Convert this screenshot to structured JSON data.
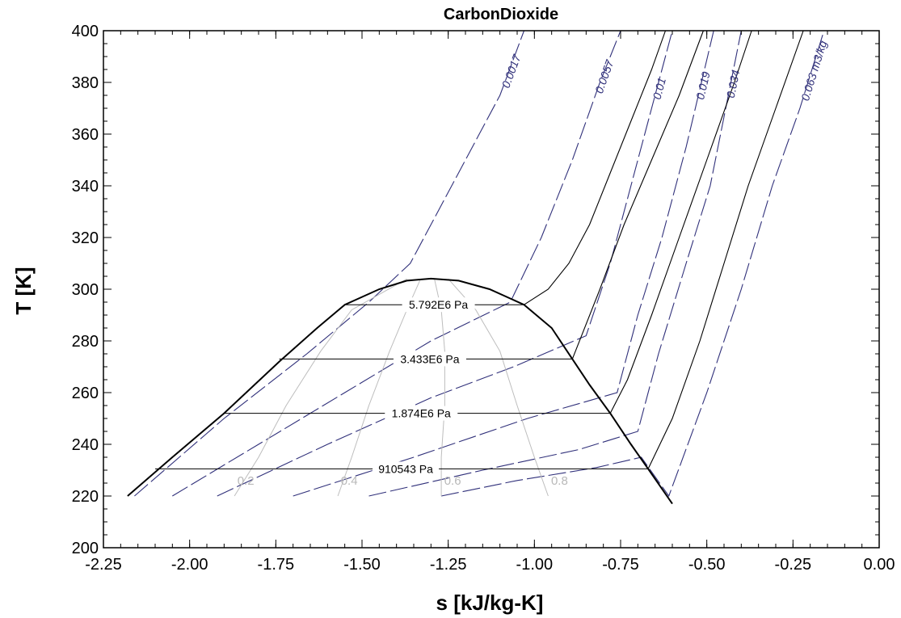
{
  "chart_data": {
    "type": "line",
    "title": "CarbonDioxide",
    "xlabel": "s [kJ/kg-K]",
    "ylabel": "T [K]",
    "xlim": [
      -2.25,
      0.0
    ],
    "ylim": [
      200,
      400
    ],
    "xticks": [
      "-2.25",
      "-2.00",
      "-1.75",
      "-1.50",
      "-1.25",
      "-1.00",
      "-0.75",
      "-0.50",
      "-0.25",
      "0.00"
    ],
    "yticks": [
      "200",
      "220",
      "240",
      "260",
      "280",
      "300",
      "320",
      "340",
      "360",
      "380",
      "400"
    ],
    "grid": false,
    "colors": {
      "saturation": "#000000",
      "isobar": "#000000",
      "isochor": "#30307a",
      "quality": "#bdbdbd"
    },
    "saturation_dome": [
      [
        -2.18,
        220
      ],
      [
        -2.05,
        235
      ],
      [
        -1.9,
        252
      ],
      [
        -1.74,
        272
      ],
      [
        -1.63,
        285
      ],
      [
        -1.55,
        294
      ],
      [
        -1.45,
        300
      ],
      [
        -1.37,
        303.3
      ],
      [
        -1.3,
        304.1
      ],
      [
        -1.22,
        303.3
      ],
      [
        -1.13,
        300
      ],
      [
        -1.03,
        294
      ],
      [
        -0.95,
        285
      ],
      [
        -0.89,
        273
      ],
      [
        -0.84,
        263
      ],
      [
        -0.78,
        252
      ],
      [
        -0.72,
        240
      ],
      [
        -0.67,
        230.5
      ],
      [
        -0.6,
        217
      ]
    ],
    "isobars": [
      {
        "label": "5.792E6 Pa",
        "T_sat": 294,
        "s_liq": -1.55,
        "s_vap": -1.03,
        "vapor": [
          [
            -1.03,
            294
          ],
          [
            -0.96,
            300
          ],
          [
            -0.9,
            310
          ],
          [
            -0.84,
            325
          ],
          [
            -0.78,
            345
          ],
          [
            -0.72,
            365
          ],
          [
            -0.66,
            385
          ],
          [
            -0.62,
            400
          ]
        ]
      },
      {
        "label": "3.433E6 Pa",
        "T_sat": 273,
        "s_liq": -1.74,
        "s_vap": -0.89,
        "vapor": [
          [
            -0.89,
            273
          ],
          [
            -0.81,
            300
          ],
          [
            -0.74,
            325
          ],
          [
            -0.66,
            350
          ],
          [
            -0.58,
            375
          ],
          [
            -0.51,
            400
          ]
        ]
      },
      {
        "label": "1.874E6 Pa",
        "T_sat": 252,
        "s_liq": -1.9,
        "s_vap": -0.78,
        "vapor": [
          [
            -0.78,
            252
          ],
          [
            -0.73,
            265
          ],
          [
            -0.66,
            290
          ],
          [
            -0.58,
            320
          ],
          [
            -0.5,
            350
          ],
          [
            -0.42,
            380
          ],
          [
            -0.37,
            400
          ]
        ]
      },
      {
        "label": "910543 Pa",
        "T_sat": 230.5,
        "s_liq": -2.1,
        "s_vap": -0.67,
        "vapor": [
          [
            -0.67,
            230.5
          ],
          [
            -0.6,
            250
          ],
          [
            -0.52,
            280
          ],
          [
            -0.45,
            310
          ],
          [
            -0.38,
            340
          ],
          [
            -0.3,
            370
          ],
          [
            -0.22,
            400
          ]
        ]
      }
    ],
    "isochors": [
      {
        "label": "0.0017",
        "points": [
          [
            -2.16,
            220
          ],
          [
            -1.9,
            250
          ],
          [
            -1.66,
            275
          ],
          [
            -1.48,
            295
          ],
          [
            -1.36,
            310
          ],
          [
            -1.22,
            345
          ],
          [
            -1.1,
            375
          ],
          [
            -1.03,
            400
          ]
        ]
      },
      {
        "label": "0.0057",
        "points": [
          [
            -2.05,
            220
          ],
          [
            -1.8,
            240
          ],
          [
            -1.55,
            260
          ],
          [
            -1.3,
            280
          ],
          [
            -1.07,
            295
          ],
          [
            -0.98,
            320
          ],
          [
            -0.89,
            350
          ],
          [
            -0.81,
            380
          ],
          [
            -0.75,
            400
          ]
        ]
      },
      {
        "label": "0.01",
        "points": [
          [
            -1.92,
            220
          ],
          [
            -1.6,
            240
          ],
          [
            -1.3,
            258
          ],
          [
            -1.06,
            270
          ],
          [
            -0.85,
            282
          ],
          [
            -0.78,
            310
          ],
          [
            -0.72,
            340
          ],
          [
            -0.66,
            370
          ],
          [
            -0.6,
            400
          ]
        ]
      },
      {
        "label": "0.019",
        "points": [
          [
            -1.7,
            220
          ],
          [
            -1.35,
            235
          ],
          [
            -1.02,
            250
          ],
          [
            -0.76,
            260
          ],
          [
            -0.7,
            290
          ],
          [
            -0.63,
            320
          ],
          [
            -0.56,
            355
          ],
          [
            -0.48,
            400
          ]
        ]
      },
      {
        "label": "0.034",
        "points": [
          [
            -1.48,
            220
          ],
          [
            -1.15,
            230
          ],
          [
            -0.87,
            238
          ],
          [
            -0.7,
            245
          ],
          [
            -0.64,
            275
          ],
          [
            -0.56,
            310
          ],
          [
            -0.49,
            340
          ],
          [
            -0.4,
            400
          ]
        ]
      },
      {
        "label": "0.063 m3/kg",
        "points": [
          [
            -1.27,
            220
          ],
          [
            -1.05,
            226
          ],
          [
            -0.82,
            231
          ],
          [
            -0.69,
            235
          ],
          [
            -0.61,
            220
          ],
          [
            -0.5,
            260
          ],
          [
            -0.4,
            300
          ],
          [
            -0.31,
            340
          ],
          [
            -0.23,
            370
          ],
          [
            -0.16,
            400
          ]
        ]
      }
    ],
    "quality_lines": [
      {
        "label": "0.2",
        "points": [
          [
            -1.87,
            220
          ],
          [
            -1.8,
            235
          ],
          [
            -1.72,
            255
          ],
          [
            -1.62,
            276
          ],
          [
            -1.53,
            292
          ],
          [
            -1.37,
            304
          ]
        ]
      },
      {
        "label": "0.4",
        "points": [
          [
            -1.57,
            220
          ],
          [
            -1.53,
            235
          ],
          [
            -1.48,
            255
          ],
          [
            -1.42,
            276
          ],
          [
            -1.37,
            292
          ],
          [
            -1.33,
            304
          ]
        ]
      },
      {
        "label": "0.6",
        "points": [
          [
            -1.27,
            220
          ],
          [
            -1.27,
            235
          ],
          [
            -1.26,
            255
          ],
          [
            -1.26,
            276
          ],
          [
            -1.27,
            292
          ],
          [
            -1.29,
            304
          ]
        ]
      },
      {
        "label": "0.8",
        "points": [
          [
            -0.96,
            220
          ],
          [
            -1.0,
            235
          ],
          [
            -1.05,
            255
          ],
          [
            -1.1,
            276
          ],
          [
            -1.17,
            292
          ],
          [
            -1.25,
            304
          ]
        ]
      }
    ]
  }
}
